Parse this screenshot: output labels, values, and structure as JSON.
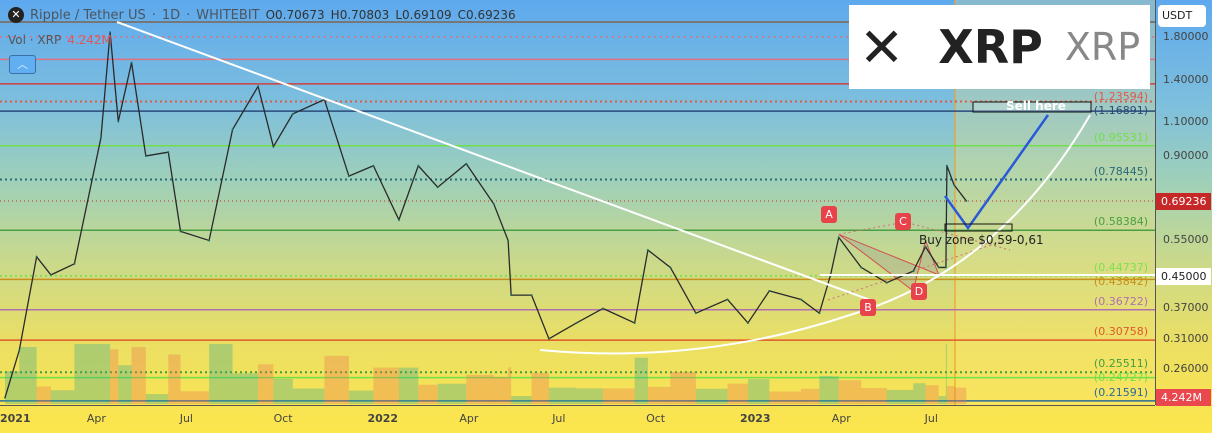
{
  "header": {
    "symbol": "Ripple / Tether US",
    "interval": "1D",
    "exchange": "WHITEBIT",
    "open": "O0.70673",
    "high": "H0.70803",
    "low": "L0.69109",
    "close": "C0.69236"
  },
  "volume_legend": {
    "label": "Vol · XRP",
    "value": "4.242M"
  },
  "logo": {
    "glyph": "✕",
    "ticker": "XRP",
    "name": "XRP"
  },
  "currency": "USDT",
  "chart_data": {
    "type": "candlestick",
    "scale": "log",
    "ylim": [
      0.2,
      2.0
    ],
    "y_ticks": [
      "1.80000",
      "1.40000",
      "1.10000",
      "0.90000",
      "0.55000",
      "0.45000",
      "0.37000",
      "0.31000",
      "0.26000"
    ],
    "x_ticks": [
      {
        "label": "2021",
        "date": "2021-01-01",
        "bold": true
      },
      {
        "label": "Apr",
        "date": "2021-04-01"
      },
      {
        "label": "Jul",
        "date": "2021-07-01"
      },
      {
        "label": "Oct",
        "date": "2021-10-01"
      },
      {
        "label": "2022",
        "date": "2022-01-01",
        "bold": true
      },
      {
        "label": "Apr",
        "date": "2022-04-01"
      },
      {
        "label": "Jul",
        "date": "2022-07-01"
      },
      {
        "label": "Oct",
        "date": "2022-10-01"
      },
      {
        "label": "2023",
        "date": "2023-01-01",
        "bold": true
      },
      {
        "label": "Apr",
        "date": "2023-04-01"
      },
      {
        "label": "Jul",
        "date": "2023-07-01"
      }
    ],
    "price": [
      [
        "2021-01-01",
        0.22
      ],
      [
        "2021-01-15",
        0.29
      ],
      [
        "2021-02-01",
        0.5
      ],
      [
        "2021-02-15",
        0.45
      ],
      [
        "2021-03-10",
        0.48
      ],
      [
        "2021-04-05",
        1.0
      ],
      [
        "2021-04-14",
        1.85
      ],
      [
        "2021-04-22",
        1.1
      ],
      [
        "2021-05-05",
        1.55
      ],
      [
        "2021-05-19",
        0.9
      ],
      [
        "2021-06-10",
        0.92
      ],
      [
        "2021-06-22",
        0.58
      ],
      [
        "2021-07-20",
        0.55
      ],
      [
        "2021-08-12",
        1.05
      ],
      [
        "2021-09-06",
        1.35
      ],
      [
        "2021-09-21",
        0.95
      ],
      [
        "2021-10-10",
        1.15
      ],
      [
        "2021-11-10",
        1.25
      ],
      [
        "2021-12-04",
        0.8
      ],
      [
        "2021-12-28",
        0.85
      ],
      [
        "2022-01-22",
        0.62
      ],
      [
        "2022-02-10",
        0.85
      ],
      [
        "2022-03-01",
        0.75
      ],
      [
        "2022-03-29",
        0.86
      ],
      [
        "2022-04-25",
        0.68
      ],
      [
        "2022-05-09",
        0.55
      ],
      [
        "2022-05-12",
        0.4
      ],
      [
        "2022-06-01",
        0.4
      ],
      [
        "2022-06-18",
        0.31
      ],
      [
        "2022-07-15",
        0.34
      ],
      [
        "2022-08-10",
        0.37
      ],
      [
        "2022-09-10",
        0.34
      ],
      [
        "2022-09-23",
        0.52
      ],
      [
        "2022-10-15",
        0.47
      ],
      [
        "2022-11-09",
        0.36
      ],
      [
        "2022-12-10",
        0.39
      ],
      [
        "2022-12-30",
        0.34
      ],
      [
        "2023-01-20",
        0.41
      ],
      [
        "2023-02-20",
        0.39
      ],
      [
        "2023-03-10",
        0.36
      ],
      [
        "2023-03-21",
        0.45
      ],
      [
        "2023-03-29",
        0.56
      ],
      [
        "2023-04-20",
        0.47
      ],
      [
        "2023-05-15",
        0.43
      ],
      [
        "2023-06-10",
        0.46
      ],
      [
        "2023-06-22",
        0.53
      ],
      [
        "2023-07-05",
        0.47
      ],
      [
        "2023-07-12",
        0.47
      ],
      [
        "2023-07-13",
        0.85
      ],
      [
        "2023-07-20",
        0.76
      ],
      [
        "2023-08-01",
        0.69236
      ]
    ],
    "current_price": "0.69236",
    "current_volume": "4.242M",
    "levels": [
      {
        "label": "(1.23594)",
        "value": 1.23594,
        "color": "#e05a4a",
        "dotted": true
      },
      {
        "label": "(1.16891)",
        "value": 1.16891,
        "color": "#2a4a78"
      },
      {
        "label": "(0.95531)",
        "value": 0.95531,
        "color": "#6fe04a"
      },
      {
        "label": "(0.78445)",
        "value": 0.78445,
        "color": "#2a6a78",
        "dotted": true
      },
      {
        "label": "(0.58384)",
        "value": 0.58384,
        "color": "#4aa040"
      },
      {
        "label": "(0.44737)",
        "value": 0.44737,
        "color": "#7fe050",
        "dotted": true
      },
      {
        "label": "(0.43842)",
        "value": 0.43842,
        "color": "#c8901a"
      },
      {
        "label": "(0.36722)",
        "value": 0.36722,
        "color": "#b070b0"
      },
      {
        "label": "(0.30758)",
        "value": 0.30758,
        "color": "#e05a2a"
      },
      {
        "label": "(0.25511)",
        "value": 0.25511,
        "color": "#40a040",
        "dotted": true
      },
      {
        "label": "(0.24727)",
        "value": 0.24727,
        "color": "#6fe04a"
      },
      {
        "label": "(0.21591)",
        "value": 0.21591,
        "color": "#2a6a9a"
      }
    ],
    "extra_lines": [
      {
        "value": 1.8,
        "color": "#e07080",
        "dotted": true
      },
      {
        "value": 1.58,
        "color": "#e07080"
      },
      {
        "value": 1.37,
        "color": "#d04040"
      }
    ],
    "pattern_points": [
      {
        "label": "A",
        "date": "2023-03-29",
        "price": 0.57
      },
      {
        "label": "B",
        "date": "2023-06-10",
        "price": 0.41
      },
      {
        "label": "C",
        "date": "2023-06-22",
        "price": 0.55
      },
      {
        "label": "D",
        "date": "2023-07-05",
        "price": 0.45
      }
    ],
    "annotations": {
      "sell": "Sell here",
      "buy": "Buy zone $0,59-0,61"
    },
    "colors": {
      "up": "#26a69a",
      "down": "#3a3a3a",
      "price_tag": "#c62828",
      "volume_tag": "#e8484e"
    }
  }
}
